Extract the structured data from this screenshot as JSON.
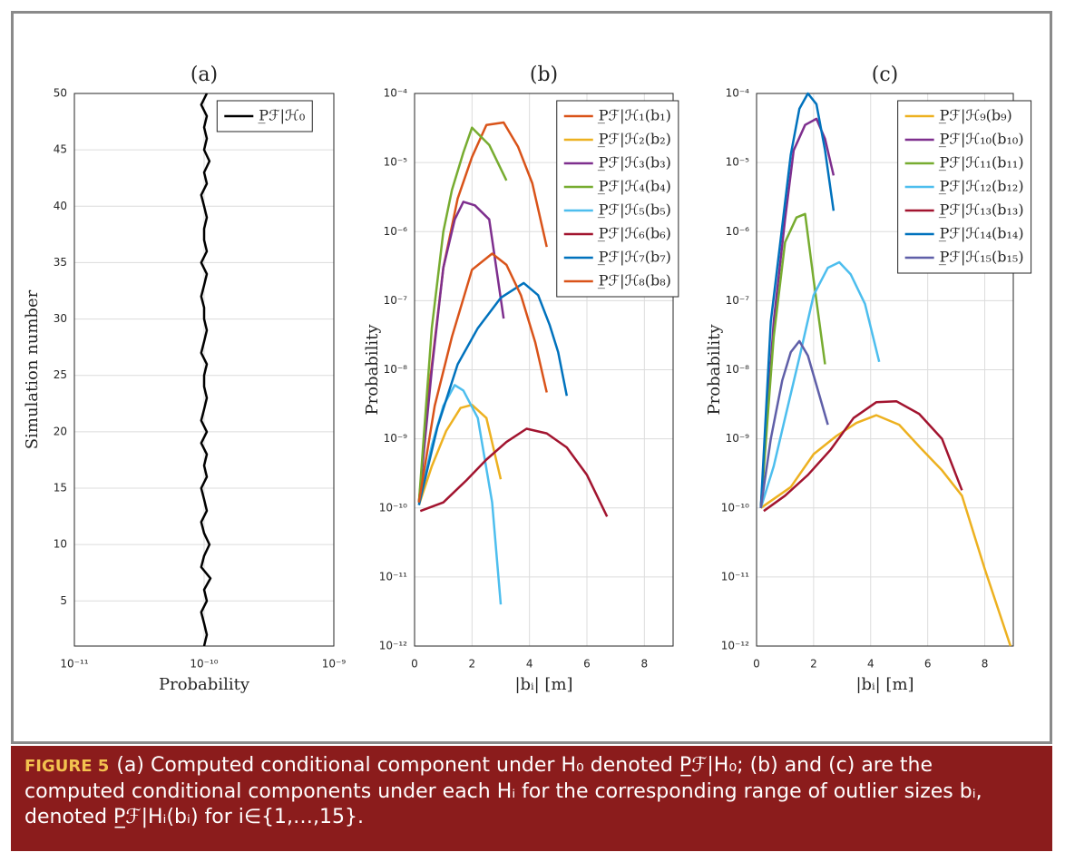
{
  "chart_data": [
    {
      "type": "line",
      "title": "(a)",
      "xlabel": "Probability",
      "ylabel": "Simulation number",
      "orientation": "horizontal",
      "xscale": "log",
      "xlim": [
        1e-11,
        1e-09
      ],
      "xticks": [
        {
          "value": 1e-11,
          "label": "10⁻¹¹"
        },
        {
          "value": 1e-10,
          "label": "10⁻¹⁰"
        },
        {
          "value": 1e-09,
          "label": "10⁻⁹"
        }
      ],
      "ylim": [
        1,
        50
      ],
      "yticks": [
        5,
        10,
        15,
        20,
        25,
        30,
        35,
        40,
        45,
        50
      ],
      "grid": true,
      "legend": "upper right",
      "y": [
        1,
        2,
        3,
        4,
        5,
        6,
        7,
        8,
        9,
        10,
        11,
        12,
        13,
        14,
        15,
        16,
        17,
        18,
        19,
        20,
        21,
        22,
        23,
        24,
        25,
        26,
        27,
        28,
        29,
        30,
        31,
        32,
        33,
        34,
        35,
        36,
        37,
        38,
        39,
        40,
        41,
        42,
        43,
        44,
        45,
        46,
        47,
        48,
        49,
        50
      ],
      "series": [
        {
          "name": "P̲ℱ|ℋ₀",
          "color": "#000000",
          "values": [
            1e-10,
            1.05e-10,
            1e-10,
            9.5e-11,
            1.05e-10,
            1e-10,
            1.12e-10,
            9.5e-11,
            1e-10,
            1.1e-10,
            1e-10,
            9.5e-11,
            1.05e-10,
            1e-10,
            9.5e-11,
            1.05e-10,
            1e-10,
            1.05e-10,
            9.5e-11,
            1.05e-10,
            9.5e-11,
            1e-10,
            1.05e-10,
            1e-10,
            1e-10,
            1.05e-10,
            9.5e-11,
            1e-10,
            1.05e-10,
            1e-10,
            1e-10,
            9.5e-11,
            1e-10,
            1.05e-10,
            9.5e-11,
            1.05e-10,
            1e-10,
            1e-10,
            1.05e-10,
            1e-10,
            9.5e-11,
            1.05e-10,
            1e-10,
            1.1e-10,
            1e-10,
            1.05e-10,
            1e-10,
            1.05e-10,
            9.5e-11,
            1.05e-10
          ]
        }
      ]
    },
    {
      "type": "line",
      "title": "(b)",
      "xlabel": "|bᵢ| [m]",
      "ylabel": "Probability",
      "xlim": [
        0,
        9
      ],
      "xticks": [
        0,
        2,
        4,
        6,
        8
      ],
      "yscale": "log",
      "ylim": [
        1e-12,
        0.0001
      ],
      "yticks": [
        {
          "value": 1e-12,
          "label": "10⁻¹²"
        },
        {
          "value": 1e-11,
          "label": "10⁻¹¹"
        },
        {
          "value": 1e-10,
          "label": "10⁻¹⁰"
        },
        {
          "value": 1e-09,
          "label": "10⁻⁹"
        },
        {
          "value": 1e-08,
          "label": "10⁻⁸"
        },
        {
          "value": 1e-07,
          "label": "10⁻⁷"
        },
        {
          "value": 1e-06,
          "label": "10⁻⁶"
        },
        {
          "value": 1e-05,
          "label": "10⁻⁵"
        },
        {
          "value": 0.0001,
          "label": "10⁻⁴"
        }
      ],
      "grid": true,
      "legend": "upper right",
      "series": [
        {
          "name": "P̲ℱ|ℋ₁(b₁)",
          "color": "#d95319",
          "x": [
            0.15,
            0.5,
            1.0,
            1.5,
            2.0,
            2.5,
            3.1,
            3.6,
            4.1,
            4.6
          ],
          "values": [
            1.2e-10,
            5e-09,
            3e-07,
            3e-06,
            1.2e-05,
            3.5e-05,
            3.8e-05,
            1.7e-05,
            5e-06,
            6e-07
          ]
        },
        {
          "name": "P̲ℱ|ℋ₂(b₂)",
          "color": "#edb120",
          "x": [
            0.15,
            0.6,
            1.1,
            1.6,
            2.0,
            2.5,
            3.0
          ],
          "values": [
            1.1e-10,
            4e-10,
            1.3e-09,
            2.8e-09,
            3.1e-09,
            2e-09,
            2.6e-10
          ]
        },
        {
          "name": "P̲ℱ|ℋ₃(b₃)",
          "color": "#7e2f8e",
          "x": [
            0.15,
            0.6,
            1.0,
            1.4,
            1.7,
            2.1,
            2.6,
            3.1
          ],
          "values": [
            1.2e-10,
            1e-08,
            3e-07,
            1.5e-06,
            2.7e-06,
            2.4e-06,
            1.5e-06,
            5.5e-08
          ]
        },
        {
          "name": "P̲ℱ|ℋ₄(b₄)",
          "color": "#77ac30",
          "x": [
            0.15,
            0.6,
            1.0,
            1.3,
            1.7,
            2.0,
            2.6,
            3.2
          ],
          "values": [
            1.2e-10,
            4e-08,
            1e-06,
            4e-06,
            1.4e-05,
            3.2e-05,
            1.8e-05,
            5.5e-06
          ]
        },
        {
          "name": "P̲ℱ|ℋ₅(b₅)",
          "color": "#4dbeee",
          "x": [
            0.15,
            0.6,
            1.0,
            1.4,
            1.7,
            2.2,
            2.7,
            3.0
          ],
          "values": [
            1.1e-10,
            8e-10,
            3e-09,
            6e-09,
            5e-09,
            2e-09,
            1.2e-10,
            4e-12
          ]
        },
        {
          "name": "P̲ℱ|ℋ₆(b₆)",
          "color": "#a2142f",
          "x": [
            0.2,
            1.0,
            1.8,
            2.5,
            3.2,
            3.9,
            4.6,
            5.3,
            6.0,
            6.7
          ],
          "values": [
            9e-11,
            1.2e-10,
            2.5e-10,
            5e-10,
            9e-10,
            1.4e-09,
            1.2e-09,
            7.5e-10,
            3e-10,
            7.5e-11
          ]
        },
        {
          "name": "P̲ℱ|ℋ₇(b₇)",
          "color": "#0072bd",
          "x": [
            0.15,
            0.8,
            1.5,
            2.2,
            3.0,
            3.8,
            4.3,
            4.7,
            5.0,
            5.3
          ],
          "values": [
            1.1e-10,
            1.5e-09,
            1.2e-08,
            4e-08,
            1.1e-07,
            1.8e-07,
            1.2e-07,
            4.5e-08,
            1.8e-08,
            4.2e-09
          ]
        },
        {
          "name": "P̲ℱ|ℋ₈(b₈)",
          "color": "#d95319",
          "x": [
            0.15,
            0.7,
            1.3,
            2.0,
            2.7,
            3.2,
            3.7,
            4.2,
            4.6
          ],
          "values": [
            1.2e-10,
            3e-09,
            3e-08,
            2.8e-07,
            4.8e-07,
            3.3e-07,
            1.2e-07,
            2.5e-08,
            4.7e-09
          ]
        }
      ]
    },
    {
      "type": "line",
      "title": "(c)",
      "xlabel": "|bᵢ| [m]",
      "ylabel": "Probability",
      "xlim": [
        0,
        9
      ],
      "xticks": [
        0,
        2,
        4,
        6,
        8
      ],
      "yscale": "log",
      "ylim": [
        1e-12,
        0.0001
      ],
      "yticks": [
        {
          "value": 1e-12,
          "label": "10⁻¹²"
        },
        {
          "value": 1e-11,
          "label": "10⁻¹¹"
        },
        {
          "value": 1e-10,
          "label": "10⁻¹⁰"
        },
        {
          "value": 1e-09,
          "label": "10⁻⁹"
        },
        {
          "value": 1e-08,
          "label": "10⁻⁸"
        },
        {
          "value": 1e-07,
          "label": "10⁻⁷"
        },
        {
          "value": 1e-06,
          "label": "10⁻⁶"
        },
        {
          "value": 1e-05,
          "label": "10⁻⁵"
        },
        {
          "value": 0.0001,
          "label": "10⁻⁴"
        }
      ],
      "grid": true,
      "legend": "upper right",
      "series": [
        {
          "name": "P̲ℱ|ℋ₉(b₉)",
          "color": "#edb120",
          "x": [
            0.15,
            1.2,
            2.0,
            2.8,
            3.5,
            4.2,
            5.0,
            5.8,
            6.5,
            7.2,
            8.0,
            8.9
          ],
          "values": [
            1e-10,
            2e-10,
            6e-10,
            1.1e-09,
            1.7e-09,
            2.2e-09,
            1.6e-09,
            7e-10,
            3.5e-10,
            1.5e-10,
            1.3e-11,
            1e-12
          ]
        },
        {
          "name": "P̲ℱ|ℋ₁₀(b₁₀)",
          "color": "#7e2f8e",
          "x": [
            0.15,
            0.6,
            1.0,
            1.3,
            1.7,
            2.1,
            2.4,
            2.7
          ],
          "values": [
            1e-10,
            5e-08,
            1.5e-06,
            1.5e-05,
            3.5e-05,
            4.3e-05,
            2.2e-05,
            6.5e-06
          ]
        },
        {
          "name": "P̲ℱ|ℋ₁₁(b₁₁)",
          "color": "#77ac30",
          "x": [
            0.15,
            0.6,
            1.0,
            1.4,
            1.7,
            2.0,
            2.4
          ],
          "values": [
            1e-10,
            3e-08,
            7e-07,
            1.6e-06,
            1.8e-06,
            2e-07,
            1.2e-08
          ]
        },
        {
          "name": "P̲ℱ|ℋ₁₂(b₁₂)",
          "color": "#4dbeee",
          "x": [
            0.15,
            0.6,
            1.0,
            1.5,
            2.0,
            2.5,
            2.9,
            3.3,
            3.8,
            4.3
          ],
          "values": [
            1e-10,
            4e-10,
            2e-09,
            1.5e-08,
            1.2e-07,
            3e-07,
            3.6e-07,
            2.4e-07,
            9e-08,
            1.3e-08
          ]
        },
        {
          "name": "P̲ℱ|ℋ₁₃(b₁₃)",
          "color": "#a2142f",
          "x": [
            0.25,
            1.0,
            1.8,
            2.6,
            3.4,
            4.2,
            4.9,
            5.7,
            6.5,
            7.2
          ],
          "values": [
            9e-11,
            1.5e-10,
            3e-10,
            7e-10,
            2e-09,
            3.4e-09,
            3.5e-09,
            2.3e-09,
            1e-09,
            1.8e-10
          ]
        },
        {
          "name": "P̲ℱ|ℋ₁₄(b₁₄)",
          "color": "#0072bd",
          "x": [
            0.15,
            0.5,
            0.9,
            1.2,
            1.5,
            1.8,
            2.1,
            2.4,
            2.7
          ],
          "values": [
            1e-10,
            5e-08,
            1.2e-06,
            1.3e-05,
            6e-05,
            0.0001,
            7e-05,
            1.5e-05,
            2e-06
          ]
        },
        {
          "name": "P̲ℱ|ℋ₁₅(b₁₅)",
          "color": "#5f5fa8",
          "x": [
            0.15,
            0.5,
            0.9,
            1.2,
            1.5,
            1.8,
            2.1,
            2.5
          ],
          "values": [
            1e-10,
            1e-09,
            7e-09,
            1.8e-08,
            2.6e-08,
            1.6e-08,
            6e-09,
            1.6e-09
          ]
        }
      ]
    }
  ],
  "caption": {
    "label": "FIGURE 5",
    "text": "(a) Computed conditional component under H₀ denoted P̲ℱ|H₀; (b) and (c) are the computed conditional components under each Hᵢ for the corresponding range of outlier sizes bᵢ, denoted P̲ℱ|Hᵢ(bᵢ) for i∈{1,…,15}."
  }
}
